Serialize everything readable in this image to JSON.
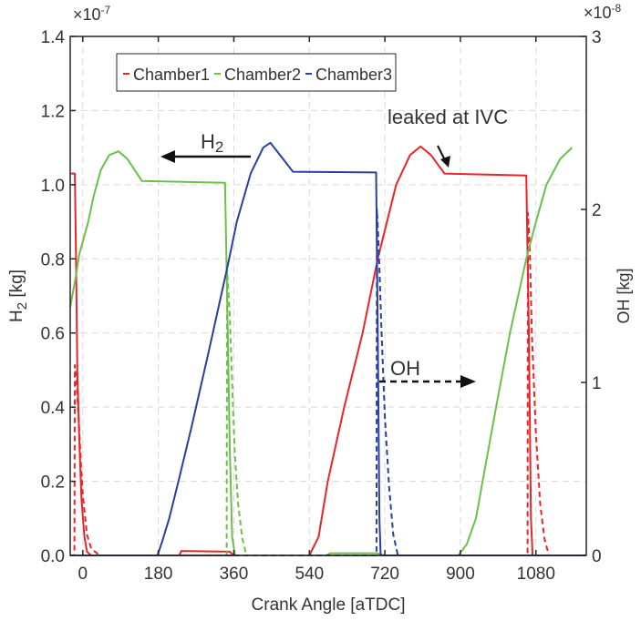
{
  "chart_data": {
    "type": "line",
    "xlabel": "Crank Angle [aTDC]",
    "ylabel_left": {
      "main": "H",
      "sub": "2",
      "unit": " [kg]"
    },
    "ylabel_right": "OH [kg]",
    "left_multiplier": {
      "base": "×10",
      "exp": "-7"
    },
    "right_multiplier": {
      "base": "×10",
      "exp": "-8"
    },
    "xlim": [
      -30,
      1200
    ],
    "ylim_left": [
      0,
      1.4
    ],
    "ylim_right": [
      0,
      3
    ],
    "xticks": [
      "0",
      "180",
      "360",
      "540",
      "720",
      "900",
      "1080"
    ],
    "xtick_values": [
      0,
      180,
      360,
      540,
      720,
      900,
      1080
    ],
    "yticks_left": [
      "0.0",
      "0.2",
      "0.4",
      "0.6",
      "0.8",
      "1.0",
      "1.2",
      "1.4"
    ],
    "yticks_right": [
      "0",
      "1",
      "2",
      "3"
    ],
    "grid": true,
    "legend_placement": "top-left",
    "legend": [
      "Chamber1",
      "Chamber2",
      "Chamber3"
    ],
    "colors": {
      "Chamber1": "#e8262a",
      "Chamber2": "#6cc04a",
      "Chamber3": "#2b3f9e"
    },
    "annotations": {
      "h2": {
        "main": "H",
        "sub": "2"
      },
      "oh": "OH",
      "leak": "leaked at IVC"
    },
    "series": [
      {
        "name": "Chamber1",
        "quantity": "H2",
        "axis": "left",
        "style": "solid",
        "x": [
          -30,
          -19,
          -16,
          -13,
          -8,
          -3,
          4,
          10,
          20,
          230,
          235,
          350,
          360,
          540,
          562,
          584,
          623,
          667,
          703,
          747,
          780,
          805,
          830,
          862,
          1057,
          1063,
          1068,
          1072,
          1198
        ],
        "y": [
          1.03,
          1.03,
          0.8,
          0.5,
          0.3,
          0.15,
          0.05,
          0.01,
          0,
          0,
          0.012,
          0.01,
          0,
          0,
          0.05,
          0.2,
          0.4,
          0.6,
          0.8,
          1.0,
          1.08,
          1.103,
          1.08,
          1.03,
          1.025,
          0.6,
          0.1,
          0,
          0
        ]
      },
      {
        "name": "Chamber1",
        "quantity": "OH",
        "axis": "right",
        "style": "dashed",
        "x": [
          -30,
          -20,
          -19,
          -15,
          -10,
          -5,
          0,
          10,
          20,
          40,
          1060,
          1061,
          1065,
          1070,
          1080,
          1090,
          1100,
          1111,
          1198
        ],
        "y": [
          0,
          0,
          1.1,
          1.0,
          0.8,
          0.55,
          0.35,
          0.12,
          0.04,
          0,
          0,
          1.98,
          1.8,
          1.3,
          0.7,
          0.3,
          0.1,
          0,
          0
        ]
      },
      {
        "name": "Chamber2",
        "quantity": "H2",
        "axis": "left",
        "style": "solid",
        "x": [
          -30,
          -17,
          -9,
          13,
          26,
          43,
          63,
          85,
          106,
          141,
          339,
          344,
          350,
          356,
          363,
          580,
          590,
          700,
          720,
          895,
          915,
          937,
          953,
          985,
          1018,
          1057,
          1080,
          1105,
          1138,
          1166
        ],
        "y": [
          0.67,
          0.75,
          0.81,
          0.9,
          0.97,
          1.04,
          1.08,
          1.09,
          1.07,
          1.01,
          1.005,
          0.7,
          0.3,
          0.05,
          0,
          0,
          0.006,
          0.006,
          0,
          0,
          0.03,
          0.1,
          0.2,
          0.4,
          0.6,
          0.8,
          0.9,
          1.0,
          1.07,
          1.1
        ]
      },
      {
        "name": "Chamber2",
        "quantity": "OH",
        "axis": "right",
        "style": "dashed",
        "x": [
          -30,
          343,
          344,
          350,
          356,
          362,
          370,
          380,
          390,
          1198
        ],
        "y": [
          0,
          0,
          1.65,
          1.4,
          1.0,
          0.6,
          0.3,
          0.1,
          0,
          0
        ]
      },
      {
        "name": "Chamber3",
        "quantity": "H2",
        "axis": "left",
        "style": "solid",
        "x": [
          -30,
          178,
          190,
          206,
          228,
          260,
          300,
          345,
          367,
          400,
          430,
          447,
          470,
          501,
          699,
          703,
          707,
          710,
          1198
        ],
        "y": [
          0,
          0,
          0.04,
          0.1,
          0.2,
          0.35,
          0.55,
          0.78,
          0.9,
          1.03,
          1.1,
          1.113,
          1.08,
          1.035,
          1.033,
          0.6,
          0.1,
          0,
          0
        ]
      },
      {
        "name": "Chamber3",
        "quantity": "OH",
        "axis": "right",
        "style": "dashed",
        "x": [
          -30,
          700,
          701,
          705,
          712,
          720,
          730,
          740,
          751,
          1198
        ],
        "y": [
          0,
          0,
          2.0,
          1.8,
          1.3,
          0.8,
          0.4,
          0.12,
          0,
          0
        ]
      }
    ]
  }
}
